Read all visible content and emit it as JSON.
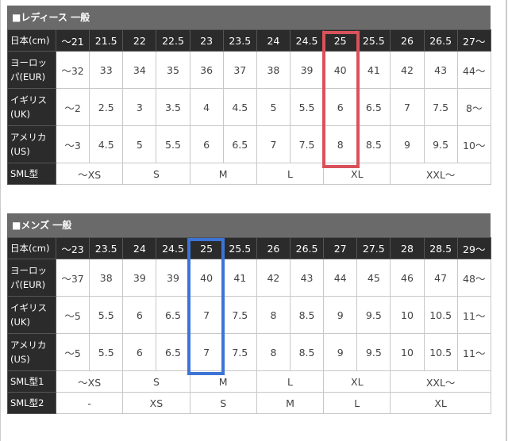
{
  "ladies": {
    "title": "■レディース 一般",
    "header_label": "日本(cm)",
    "header": [
      "〜21",
      "21.5",
      "22",
      "22.5",
      "23",
      "23.5",
      "24",
      "24.5",
      "25",
      "25.5",
      "26",
      "26.5",
      "27〜"
    ],
    "rows": [
      {
        "label": "ヨーロッパ(EUR)",
        "values": [
          "〜32",
          "33",
          "34",
          "35",
          "36",
          "37",
          "38",
          "39",
          "40",
          "41",
          "42",
          "43",
          "44〜"
        ]
      },
      {
        "label": "イギリス(UK)",
        "values": [
          "〜2",
          "2.5",
          "3",
          "3.5",
          "4",
          "4.5",
          "5",
          "5.5",
          "6",
          "6.5",
          "7",
          "7.5",
          "8〜"
        ]
      },
      {
        "label": "アメリカ(US)",
        "values": [
          "〜3",
          "4.5",
          "5",
          "5.5",
          "6",
          "6.5",
          "7",
          "7.5",
          "8",
          "8.5",
          "9",
          "9.5",
          "10〜"
        ]
      }
    ],
    "sml": [
      {
        "label": "SML型",
        "spans": [
          [
            "〜XS",
            2
          ],
          [
            "S",
            2
          ],
          [
            "M",
            2
          ],
          [
            "L",
            2
          ],
          [
            "XL",
            2
          ],
          [
            "XXL〜",
            3
          ]
        ]
      }
    ],
    "highlight_column": "25",
    "highlight_color": "#d9525b"
  },
  "mens": {
    "title": "■メンズ 一般",
    "header_label": "日本(cm)",
    "header": [
      "〜23",
      "23.5",
      "24",
      "24.5",
      "25",
      "25.5",
      "26",
      "26.5",
      "27",
      "27.5",
      "28",
      "28.5",
      "29〜"
    ],
    "rows": [
      {
        "label": "ヨーロッパ(EUR)",
        "values": [
          "〜37",
          "38",
          "39",
          "39",
          "40",
          "41",
          "42",
          "43",
          "44",
          "45",
          "46",
          "47",
          "48〜"
        ]
      },
      {
        "label": "イギリス(UK)",
        "values": [
          "〜5",
          "5.5",
          "6",
          "6.5",
          "7",
          "7.5",
          "8",
          "8.5",
          "9",
          "9.5",
          "10",
          "10.5",
          "11〜"
        ]
      },
      {
        "label": "アメリカ(US)",
        "values": [
          "〜5",
          "5.5",
          "6",
          "6.5",
          "7",
          "7.5",
          "8",
          "8.5",
          "9",
          "9.5",
          "10",
          "10.5",
          "11〜"
        ]
      }
    ],
    "sml": [
      {
        "label": "SML型1",
        "spans": [
          [
            "〜XS",
            2
          ],
          [
            "S",
            2
          ],
          [
            "M",
            2
          ],
          [
            "L",
            2
          ],
          [
            "XL",
            2
          ],
          [
            "XXL〜",
            3
          ]
        ]
      },
      {
        "label": "SML型2",
        "spans": [
          [
            "-",
            2
          ],
          [
            "XS",
            2
          ],
          [
            "S",
            2
          ],
          [
            "M",
            2
          ],
          [
            "L",
            2
          ],
          [
            "XL",
            3
          ]
        ]
      }
    ],
    "highlight_column": "25",
    "highlight_color": "#3d74d6"
  }
}
